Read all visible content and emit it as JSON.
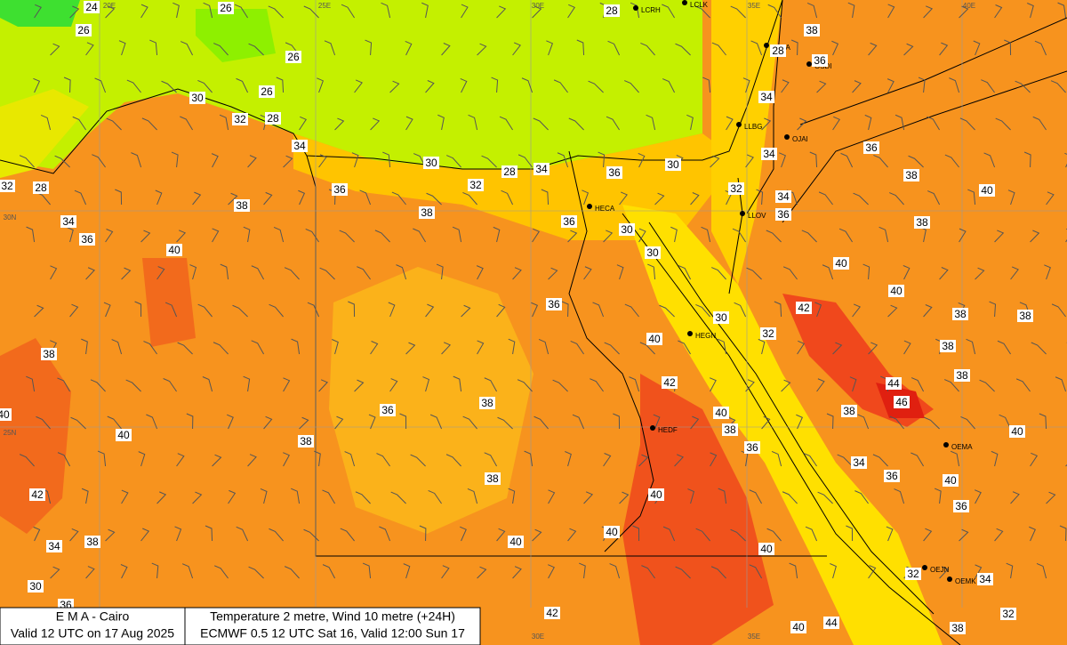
{
  "footer": {
    "left": [
      "E M A  -  Cairo",
      "Valid 12 UTC on 17 Aug 2025"
    ],
    "right": [
      "Temperature  2 metre, Wind  10 metre (+24H)",
      "ECMWF 0.5 12 UTC Sat 16, Valid 12:00 Sun 17"
    ]
  },
  "grid_labels": [
    "20E",
    "25E",
    "30E",
    "35E",
    "40E",
    "30N",
    "25N",
    "30E",
    "35E"
  ],
  "stations": [
    "LCRH",
    "LCLK",
    "OJBA",
    "OSDI",
    "LLBG",
    "OJAI",
    "HECA",
    "LLOV",
    "HEGN",
    "HEDF",
    "OEMA",
    "OEJN",
    "OEMK"
  ],
  "temperature_labels": [
    24,
    26,
    26,
    28,
    26,
    30,
    26,
    32,
    28,
    34,
    30,
    32,
    28,
    34,
    36,
    30,
    32,
    28,
    36,
    38,
    38,
    36,
    30,
    34,
    36,
    40,
    30,
    36,
    30,
    32,
    40,
    42,
    38,
    36,
    38,
    40,
    38,
    36,
    40,
    38,
    40,
    38,
    40,
    42,
    38,
    34,
    40,
    40,
    40,
    30,
    36,
    42,
    40,
    44,
    38,
    28,
    36,
    34,
    34,
    36,
    38,
    40,
    34,
    36,
    32,
    38,
    40,
    40,
    42,
    38,
    38,
    38,
    38,
    44,
    46,
    38,
    40,
    34,
    36,
    40,
    36,
    32,
    34,
    32,
    38
  ]
}
